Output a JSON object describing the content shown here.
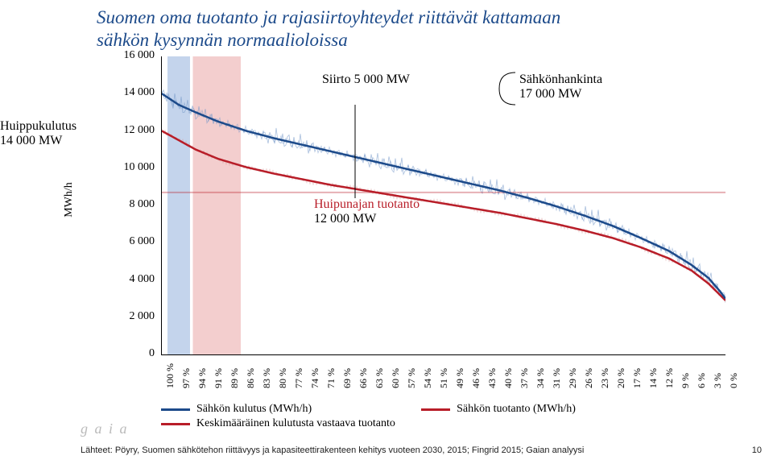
{
  "title_line1": "Suomen oma tuotanto ja rajasiirtoyhteydet riittävät kattamaan",
  "title_line2": "sähkön kysynnän normaalioloissa",
  "title_color": "#1c4a8a",
  "title_fontsize": 23,
  "left_annot_line1": "Huippukulutus",
  "left_annot_line2": "14 000 MW",
  "left_annot_fontsize": 16,
  "annot_siirto": "Siirto 5 000 MW",
  "annot_hankinta_l1": "Sähkönhankinta",
  "annot_hankinta_l2": "17 000 MW",
  "annot_huipu_l1": "Huipunajan tuotanto",
  "annot_huipu_l2": "12 000 MW",
  "annot_fontsize": 16,
  "y_axis_title": "MWh/h",
  "y_axis_fontsize": 14,
  "chart": {
    "ylim": [
      0,
      16000
    ],
    "ytick_step": 2000,
    "yticks": [
      "0",
      "2 000",
      "4 000",
      "6 000",
      "8 000",
      "10 000",
      "12 000",
      "14 000",
      "16 000"
    ],
    "ytick_fontsize": 14,
    "xlim": [
      100,
      0
    ],
    "xticks": [
      "100 %",
      "97 %",
      "94 %",
      "91 %",
      "89 %",
      "86 %",
      "83 %",
      "80 %",
      "77 %",
      "74 %",
      "71 %",
      "69 %",
      "66 %",
      "63 %",
      "60 %",
      "57 %",
      "54 %",
      "51 %",
      "49 %",
      "46 %",
      "43 %",
      "40 %",
      "37 %",
      "34 %",
      "31 %",
      "29 %",
      "26 %",
      "23 %",
      "20 %",
      "17 %",
      "14 %",
      "12 %",
      "9 %",
      "6 %",
      "3 %",
      "0 %"
    ],
    "xtick_fontsize": 12,
    "background": "#ffffff",
    "band_peak_x": [
      99,
      95
    ],
    "band_peak_color": "#9cb7df",
    "band_peak_opacity": 0.6,
    "band_huipu_x": [
      94.5,
      86
    ],
    "band_huipu_color": "#e9a6a6",
    "band_huipu_opacity": 0.55,
    "consumption_color": "#1c4a8a",
    "consumption_width": 2.5,
    "consumption_points": [
      [
        100,
        14000
      ],
      [
        97,
        13400
      ],
      [
        94,
        13000
      ],
      [
        90,
        12500
      ],
      [
        85,
        12000
      ],
      [
        80,
        11600
      ],
      [
        75,
        11250
      ],
      [
        70,
        10900
      ],
      [
        65,
        10550
      ],
      [
        60,
        10200
      ],
      [
        55,
        9850
      ],
      [
        50,
        9500
      ],
      [
        45,
        9150
      ],
      [
        40,
        8800
      ],
      [
        35,
        8400
      ],
      [
        30,
        7950
      ],
      [
        25,
        7450
      ],
      [
        20,
        6900
      ],
      [
        15,
        6250
      ],
      [
        10,
        5550
      ],
      [
        6,
        4800
      ],
      [
        3,
        4100
      ],
      [
        1,
        3400
      ],
      [
        0,
        3000
      ]
    ],
    "consumption_noise_color": "#6f94c7",
    "production_color": "#b81d28",
    "production_width": 2.5,
    "production_points": [
      [
        100,
        12000
      ],
      [
        97,
        11500
      ],
      [
        94,
        11000
      ],
      [
        90,
        10500
      ],
      [
        85,
        10050
      ],
      [
        80,
        9700
      ],
      [
        75,
        9400
      ],
      [
        70,
        9100
      ],
      [
        65,
        8850
      ],
      [
        60,
        8600
      ],
      [
        55,
        8350
      ],
      [
        50,
        8100
      ],
      [
        45,
        7850
      ],
      [
        40,
        7600
      ],
      [
        35,
        7300
      ],
      [
        30,
        7000
      ],
      [
        25,
        6650
      ],
      [
        20,
        6250
      ],
      [
        15,
        5750
      ],
      [
        10,
        5150
      ],
      [
        6,
        4500
      ],
      [
        3,
        3800
      ],
      [
        1,
        3200
      ],
      [
        0,
        2900
      ]
    ],
    "flat_color": "#b81d28",
    "flat_width": 2,
    "flat_points": [
      [
        100,
        8700
      ],
      [
        0,
        8700
      ]
    ]
  },
  "legend": {
    "fontsize": 14,
    "items": [
      {
        "color": "#1c4a8a",
        "label": "Sähkön kulutus (MWh/h)"
      },
      {
        "color": "#b81d28",
        "label": "Keskimääräinen kulutusta vastaava tuotanto"
      }
    ],
    "right_item": {
      "color": "#b81d28",
      "label": "Sähkön tuotanto (MWh/h)"
    }
  },
  "footer": "Lähteet: Pöyry, Suomen sähkötehon riittävyys ja kapasiteettirakenteen kehitys vuoteen 2030, 2015; Fingrid 2015; Gaian analyysi",
  "pagenum": "10",
  "logo": "g a i a"
}
